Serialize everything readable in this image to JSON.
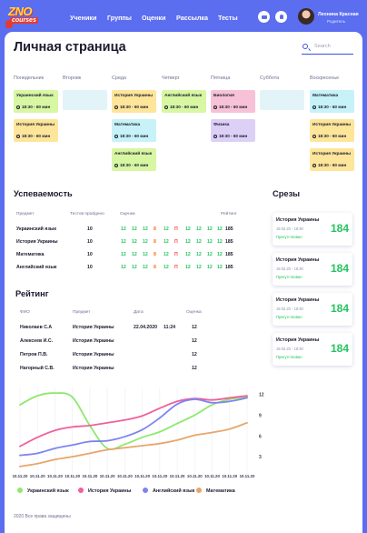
{
  "header": {
    "logo_top": "ZNO",
    "logo_bottom": "courses",
    "nav": [
      "Ученики",
      "Группы",
      "Оценки",
      "Рассылка",
      "Тесты"
    ],
    "user_name": "Леонина Красная",
    "user_role": "Родитель"
  },
  "page": {
    "title": "Личная страница",
    "search_placeholder": "Search"
  },
  "schedule": {
    "days": [
      "Понедельник",
      "Вторник",
      "Среда",
      "Четверг",
      "Пятница",
      "Суббота",
      "Воскресенье"
    ],
    "slots": [
      {
        "day": 0,
        "row": 0,
        "name": "Украинский язык",
        "time": "18:30 - 60 мин",
        "color": "#d7f7a3"
      },
      {
        "day": 0,
        "row": 1,
        "name": "История Украины",
        "time": "18:30 - 60 мин",
        "color": "#fde59a"
      },
      {
        "day": 1,
        "row": 0,
        "name": "",
        "time": "",
        "color": "#e3f4f8"
      },
      {
        "day": 2,
        "row": 0,
        "name": "История Украины",
        "time": "18:30 - 60 мин",
        "color": "#fde59a"
      },
      {
        "day": 2,
        "row": 1,
        "name": "Математика",
        "time": "18:30 - 60 мин",
        "color": "#c7f2f7"
      },
      {
        "day": 2,
        "row": 2,
        "name": "Английский язык",
        "time": "18:30 - 60 мин",
        "color": "#d7f7a3"
      },
      {
        "day": 3,
        "row": 0,
        "name": "Английский язык",
        "time": "18:30 - 60 мин",
        "color": "#d7f7a3"
      },
      {
        "day": 4,
        "row": 0,
        "name": "Биология",
        "time": "18:30 - 60 мин",
        "color": "#f7c2d6"
      },
      {
        "day": 4,
        "row": 1,
        "name": "Физика",
        "time": "18:30 - 60 мин",
        "color": "#ddd0f7"
      },
      {
        "day": 5,
        "row": 0,
        "name": "",
        "time": "",
        "color": "#e3f4f8"
      },
      {
        "day": 6,
        "row": 0,
        "name": "Математика",
        "time": "18:30 - 60 мин",
        "color": "#c7f2f7"
      },
      {
        "day": 6,
        "row": 1,
        "name": "История Украины",
        "time": "18:30 - 60 мин",
        "color": "#fde59a"
      },
      {
        "day": 6,
        "row": 2,
        "name": "История Украины",
        "time": "18:30 - 60 мин",
        "color": "#fde59a"
      }
    ]
  },
  "progress": {
    "title": "Успеваемость",
    "columns": [
      "Предмет",
      "Тестов пройдено",
      "Оценки",
      "Рейтинг"
    ],
    "rows": [
      {
        "subject": "Украинский язык",
        "tests": "10",
        "grades": [
          "12",
          "12",
          "12",
          "8",
          "12",
          "П",
          "12",
          "12",
          "12",
          "12"
        ],
        "rating": "185"
      },
      {
        "subject": "История Украины",
        "tests": "10",
        "grades": [
          "12",
          "12",
          "12",
          "8",
          "12",
          "П",
          "12",
          "12",
          "12",
          "12"
        ],
        "rating": "185"
      },
      {
        "subject": "Математика",
        "tests": "10",
        "grades": [
          "12",
          "12",
          "12",
          "8",
          "12",
          "П",
          "12",
          "12",
          "12",
          "12"
        ],
        "rating": "185"
      },
      {
        "subject": "Английский язык",
        "tests": "10",
        "grades": [
          "12",
          "12",
          "12",
          "8",
          "12",
          "П",
          "12",
          "12",
          "12",
          "12"
        ],
        "rating": "185"
      }
    ],
    "grade_colors": [
      "#23c55e",
      "#23c55e",
      "#23c55e",
      "#f97316",
      "#23c55e",
      "#ef4444",
      "#23c55e",
      "#23c55e",
      "#23c55e",
      "#23c55e"
    ]
  },
  "rating": {
    "title": "Рейтинг",
    "columns": [
      "ФИО",
      "Предмет",
      "Дата",
      "Оценка"
    ],
    "rows": [
      {
        "name": "Николаев С.А",
        "subject": "История Украины",
        "date": "22.04.2020",
        "time": "11:24",
        "grade": "12"
      },
      {
        "name": "Алексеев И.С.",
        "subject": "История Украины",
        "date": "",
        "time": "",
        "grade": "12"
      },
      {
        "name": "Петров П.В.",
        "subject": "История Украины",
        "date": "",
        "time": "",
        "grade": "12"
      },
      {
        "name": "Нагорный С.В.",
        "subject": "История Украины",
        "date": "",
        "time": "",
        "grade": "12"
      }
    ]
  },
  "srezy": {
    "title": "Срезы",
    "cards": [
      {
        "subject": "История Украины",
        "datetime": "19.02.20 - 18:30",
        "status": "Присутствовал",
        "score": "184"
      },
      {
        "subject": "История Украины",
        "datetime": "19.02.20 - 18:30",
        "status": "Присутствовал",
        "score": "184"
      },
      {
        "subject": "История Украины",
        "datetime": "19.02.20 - 18:30",
        "status": "Присутствовал",
        "score": "184"
      },
      {
        "subject": "История Украины",
        "datetime": "19.02.20 - 18:30",
        "status": "Присутствовал",
        "score": "184"
      }
    ]
  },
  "chart_data": {
    "type": "line",
    "x": [
      "10.11.20",
      "10.11.20",
      "10.11.20",
      "10.11.20",
      "10.11.20",
      "10.11.20",
      "10.11.20",
      "10.11.20",
      "10.11.20",
      "10.11.20",
      "10.11.20",
      "10.11.20",
      "10.11.20",
      "10.11.20"
    ],
    "yticks": [
      3,
      6,
      9,
      12
    ],
    "ylim": [
      0,
      13
    ],
    "series": [
      {
        "name": "Украинский язык",
        "color": "#8ee86f",
        "values": [
          10.5,
          11.8,
          12.2,
          11.6,
          7.5,
          4.2,
          4.8,
          5.8,
          6.6,
          7.8,
          9.0,
          10.5,
          11.3,
          11.6
        ]
      },
      {
        "name": "История Украины",
        "color": "#f0609a",
        "values": [
          4.5,
          5.8,
          6.8,
          7.3,
          7.5,
          7.9,
          8.3,
          8.9,
          10.0,
          11.0,
          11.4,
          11.2,
          11.5,
          11.8
        ]
      },
      {
        "name": "Английский язык",
        "color": "#7d84f0",
        "values": [
          3.2,
          3.5,
          4.2,
          4.7,
          5.2,
          5.3,
          5.9,
          6.9,
          8.6,
          10.6,
          11.3,
          10.8,
          11.0,
          11.5
        ]
      },
      {
        "name": "Математика",
        "color": "#e8a56b",
        "values": [
          1.6,
          2.0,
          2.6,
          3.0,
          3.5,
          4.0,
          4.3,
          4.6,
          4.9,
          5.4,
          6.1,
          6.5,
          7.0,
          7.9
        ]
      }
    ],
    "legend": "bottom"
  },
  "footer": {
    "copyright": "2020 Все права защищены"
  }
}
